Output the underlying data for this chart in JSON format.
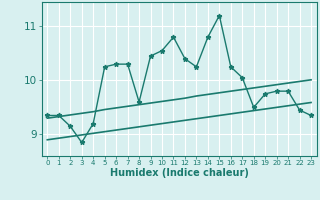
{
  "x": [
    0,
    1,
    2,
    3,
    4,
    5,
    6,
    7,
    8,
    9,
    10,
    11,
    12,
    13,
    14,
    15,
    16,
    17,
    18,
    19,
    20,
    21,
    22,
    23
  ],
  "y_main": [
    9.35,
    9.35,
    9.15,
    8.85,
    9.2,
    10.25,
    10.3,
    10.3,
    9.6,
    10.45,
    10.55,
    10.8,
    10.4,
    10.25,
    10.8,
    11.2,
    10.25,
    10.05,
    9.5,
    9.75,
    9.8,
    9.8,
    9.45,
    9.35
  ],
  "y_trend_upper": [
    9.3,
    9.33,
    9.36,
    9.39,
    9.42,
    9.46,
    9.49,
    9.52,
    9.55,
    9.58,
    9.61,
    9.64,
    9.67,
    9.71,
    9.74,
    9.77,
    9.8,
    9.83,
    9.86,
    9.89,
    9.92,
    9.95,
    9.98,
    10.01
  ],
  "y_trend_lower": [
    8.9,
    8.93,
    8.96,
    8.99,
    9.02,
    9.05,
    9.08,
    9.11,
    9.14,
    9.17,
    9.2,
    9.23,
    9.26,
    9.29,
    9.32,
    9.35,
    9.38,
    9.41,
    9.44,
    9.47,
    9.5,
    9.53,
    9.56,
    9.59
  ],
  "line_color": "#1a7a6e",
  "bg_color": "#d8f0f0",
  "grid_color": "#ffffff",
  "xlabel": "Humidex (Indice chaleur)",
  "ylim": [
    8.6,
    11.45
  ],
  "yticks": [
    9,
    10,
    11
  ],
  "xticks": [
    0,
    1,
    2,
    3,
    4,
    5,
    6,
    7,
    8,
    9,
    10,
    11,
    12,
    13,
    14,
    15,
    16,
    17,
    18,
    19,
    20,
    21,
    22,
    23
  ]
}
